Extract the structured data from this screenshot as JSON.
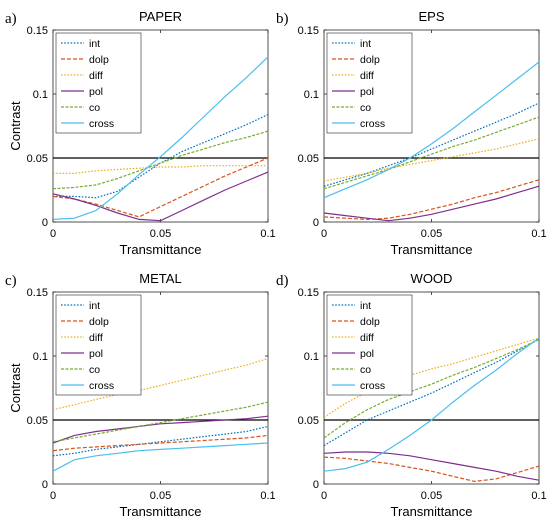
{
  "series_styles": [
    {
      "name": "int",
      "color": "#0072BD",
      "dash": "1.6,1.6"
    },
    {
      "name": "dolp",
      "color": "#D95319",
      "dash": "4,2"
    },
    {
      "name": "diff",
      "color": "#EDB120",
      "dash": "1.6,1.6"
    },
    {
      "name": "pol",
      "color": "#7E2F8E",
      "dash": ""
    },
    {
      "name": "co",
      "color": "#77AC30",
      "dash": "3,1.5"
    },
    {
      "name": "cross",
      "color": "#4DBEEE",
      "dash": ""
    }
  ],
  "chart_data": [
    {
      "type": "line",
      "panel_label": "a)",
      "title": "PAPER",
      "xlabel": "Transmittance",
      "ylabel": "Contrast",
      "xlim": [
        0,
        0.1
      ],
      "ylim": [
        0,
        0.15
      ],
      "xticks": [
        "0",
        "0.05",
        "0.1"
      ],
      "yticks": [
        "0",
        "0.05",
        "0.1",
        "0.15"
      ],
      "reference_line": 0.05,
      "legend_position": "top-left",
      "x": [
        0,
        0.01,
        0.02,
        0.03,
        0.04,
        0.05,
        0.06,
        0.07,
        0.08,
        0.09,
        0.1
      ],
      "series": [
        {
          "name": "int",
          "values": [
            0.02,
            0.02,
            0.019,
            0.024,
            0.035,
            0.046,
            0.055,
            0.062,
            0.069,
            0.076,
            0.084
          ]
        },
        {
          "name": "dolp",
          "values": [
            0.02,
            0.018,
            0.014,
            0.009,
            0.004,
            0.012,
            0.02,
            0.028,
            0.036,
            0.043,
            0.05
          ]
        },
        {
          "name": "diff",
          "values": [
            0.038,
            0.038,
            0.04,
            0.041,
            0.042,
            0.043,
            0.043,
            0.044,
            0.044,
            0.044,
            0.044
          ]
        },
        {
          "name": "pol",
          "values": [
            0.022,
            0.018,
            0.013,
            0.007,
            0.002,
            0.001,
            0.009,
            0.017,
            0.025,
            0.032,
            0.039
          ]
        },
        {
          "name": "co",
          "values": [
            0.026,
            0.027,
            0.029,
            0.034,
            0.04,
            0.046,
            0.052,
            0.057,
            0.062,
            0.066,
            0.071
          ]
        },
        {
          "name": "cross",
          "values": [
            0.002,
            0.003,
            0.009,
            0.022,
            0.037,
            0.051,
            0.066,
            0.082,
            0.098,
            0.113,
            0.129
          ]
        }
      ]
    },
    {
      "type": "line",
      "panel_label": "b)",
      "title": "EPS",
      "xlabel": "Transmittance",
      "ylabel": "",
      "xlim": [
        0,
        0.1
      ],
      "ylim": [
        0,
        0.15
      ],
      "xticks": [
        "0",
        "0.05",
        "0.1"
      ],
      "yticks": [
        "0",
        "0.05",
        "0.1",
        "0.15"
      ],
      "reference_line": 0.05,
      "legend_position": "top-left",
      "x": [
        0,
        0.01,
        0.02,
        0.03,
        0.04,
        0.05,
        0.06,
        0.07,
        0.08,
        0.09,
        0.1
      ],
      "series": [
        {
          "name": "int",
          "values": [
            0.028,
            0.033,
            0.038,
            0.044,
            0.05,
            0.057,
            0.064,
            0.071,
            0.078,
            0.085,
            0.093
          ]
        },
        {
          "name": "dolp",
          "values": [
            0.004,
            0.003,
            0.002,
            0.003,
            0.006,
            0.01,
            0.014,
            0.019,
            0.023,
            0.028,
            0.033
          ]
        },
        {
          "name": "diff",
          "values": [
            0.032,
            0.035,
            0.038,
            0.042,
            0.045,
            0.048,
            0.051,
            0.054,
            0.057,
            0.061,
            0.065
          ]
        },
        {
          "name": "pol",
          "values": [
            0.007,
            0.005,
            0.003,
            0.001,
            0.003,
            0.006,
            0.01,
            0.014,
            0.018,
            0.023,
            0.028
          ]
        },
        {
          "name": "co",
          "values": [
            0.026,
            0.031,
            0.036,
            0.041,
            0.047,
            0.053,
            0.059,
            0.064,
            0.07,
            0.076,
            0.082
          ]
        },
        {
          "name": "cross",
          "values": [
            0.019,
            0.026,
            0.033,
            0.041,
            0.05,
            0.061,
            0.073,
            0.086,
            0.099,
            0.112,
            0.125
          ]
        }
      ]
    },
    {
      "type": "line",
      "panel_label": "c)",
      "title": "METAL",
      "xlabel": "Transmittance",
      "ylabel": "Contrast",
      "xlim": [
        0,
        0.1
      ],
      "ylim": [
        0,
        0.15
      ],
      "xticks": [
        "0",
        "0.05",
        "0.1"
      ],
      "yticks": [
        "0",
        "0.05",
        "0.1",
        "0.15"
      ],
      "reference_line": 0.05,
      "legend_position": "top-left",
      "x": [
        0,
        0.01,
        0.02,
        0.03,
        0.04,
        0.05,
        0.06,
        0.07,
        0.08,
        0.09,
        0.1
      ],
      "series": [
        {
          "name": "int",
          "values": [
            0.022,
            0.024,
            0.027,
            0.029,
            0.031,
            0.033,
            0.035,
            0.037,
            0.039,
            0.041,
            0.045
          ]
        },
        {
          "name": "dolp",
          "values": [
            0.026,
            0.028,
            0.029,
            0.03,
            0.031,
            0.032,
            0.033,
            0.034,
            0.035,
            0.036,
            0.038
          ]
        },
        {
          "name": "diff",
          "values": [
            0.058,
            0.062,
            0.066,
            0.07,
            0.073,
            0.077,
            0.081,
            0.085,
            0.089,
            0.093,
            0.098
          ]
        },
        {
          "name": "pol",
          "values": [
            0.032,
            0.038,
            0.041,
            0.043,
            0.045,
            0.047,
            0.048,
            0.049,
            0.05,
            0.051,
            0.053
          ]
        },
        {
          "name": "co",
          "values": [
            0.033,
            0.036,
            0.039,
            0.042,
            0.045,
            0.048,
            0.051,
            0.054,
            0.057,
            0.06,
            0.064
          ]
        },
        {
          "name": "cross",
          "values": [
            0.01,
            0.019,
            0.022,
            0.024,
            0.026,
            0.027,
            0.028,
            0.029,
            0.03,
            0.031,
            0.032
          ]
        }
      ]
    },
    {
      "type": "line",
      "panel_label": "d)",
      "title": "WOOD",
      "xlabel": "Transmittance",
      "ylabel": "",
      "xlim": [
        0,
        0.1
      ],
      "ylim": [
        0,
        0.15
      ],
      "xticks": [
        "0",
        "0.05",
        "0.1"
      ],
      "yticks": [
        "0",
        "0.05",
        "0.1",
        "0.15"
      ],
      "reference_line": 0.05,
      "legend_position": "top-left",
      "x": [
        0,
        0.01,
        0.02,
        0.03,
        0.04,
        0.05,
        0.06,
        0.07,
        0.08,
        0.09,
        0.1
      ],
      "series": [
        {
          "name": "int",
          "values": [
            0.03,
            0.04,
            0.05,
            0.057,
            0.064,
            0.071,
            0.079,
            0.087,
            0.095,
            0.104,
            0.113
          ]
        },
        {
          "name": "dolp",
          "values": [
            0.021,
            0.02,
            0.018,
            0.016,
            0.013,
            0.01,
            0.006,
            0.002,
            0.004,
            0.009,
            0.014
          ]
        },
        {
          "name": "diff",
          "values": [
            0.052,
            0.063,
            0.072,
            0.079,
            0.085,
            0.09,
            0.094,
            0.099,
            0.104,
            0.109,
            0.114
          ]
        },
        {
          "name": "pol",
          "values": [
            0.024,
            0.025,
            0.025,
            0.024,
            0.022,
            0.019,
            0.016,
            0.013,
            0.01,
            0.006,
            0.003
          ]
        },
        {
          "name": "co",
          "values": [
            0.036,
            0.048,
            0.058,
            0.066,
            0.072,
            0.078,
            0.085,
            0.091,
            0.098,
            0.105,
            0.113
          ]
        },
        {
          "name": "cross",
          "values": [
            0.01,
            0.012,
            0.017,
            0.027,
            0.038,
            0.05,
            0.064,
            0.077,
            0.089,
            0.102,
            0.114
          ]
        }
      ]
    }
  ]
}
